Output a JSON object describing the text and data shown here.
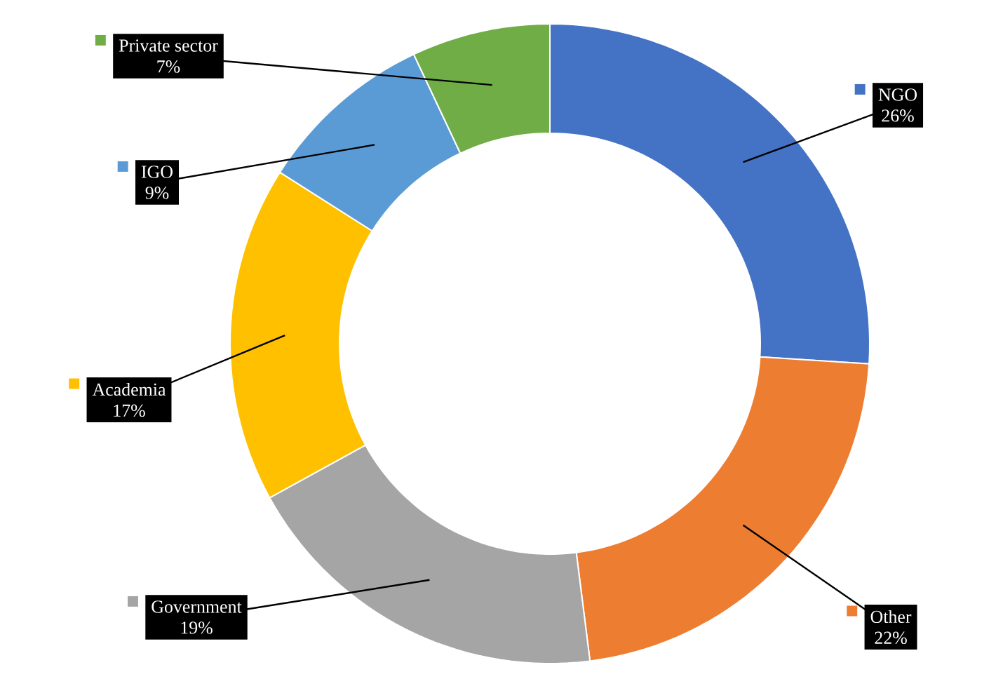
{
  "chart_data": {
    "type": "donut",
    "categories": [
      "NGO",
      "Other",
      "Government",
      "Academia",
      "IGO",
      "Private sector"
    ],
    "values": [
      26,
      22,
      19,
      17,
      9,
      7
    ],
    "value_labels": [
      "26%",
      "22%",
      "19%",
      "17%",
      "9%",
      "7%"
    ],
    "colors": [
      "#4472c4",
      "#ed7d31",
      "#a5a5a5",
      "#ffc000",
      "#5b9bd5",
      "#70ad47"
    ],
    "legend": "left"
  }
}
